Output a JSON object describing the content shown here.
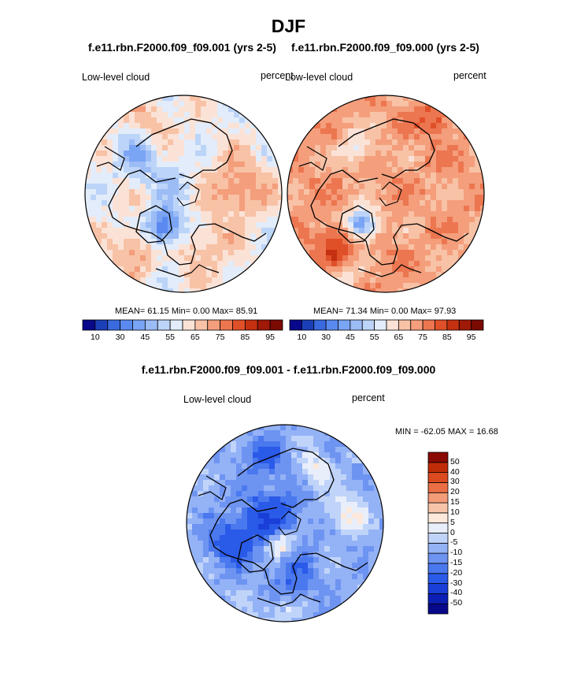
{
  "title": "DJF",
  "colors": {
    "continent_outline": "#000000",
    "frame": "#000000"
  },
  "chart_data": [
    {
      "type": "heatmap",
      "projection": "north polar stereographic",
      "title": "f.e11.rbn.F2000.f09_f09.001 (yrs 2-5)",
      "left_label": "Low-level cloud",
      "right_label": "percent",
      "stats": "MEAN=  61.15  Min=   0.00  Max=  85.91",
      "mean": 61.15,
      "min": 0.0,
      "max": 85.91,
      "colorbar": {
        "orientation": "horizontal",
        "levels": [
          10,
          20,
          30,
          40,
          45,
          50,
          55,
          60,
          65,
          70,
          75,
          80,
          85,
          90,
          95
        ],
        "tick_labels": [
          "10",
          "30",
          "45",
          "55",
          "65",
          "75",
          "85",
          "95"
        ],
        "colors": [
          "#08088a",
          "#1b3fb8",
          "#3a6ae0",
          "#5a8af0",
          "#7aa4f4",
          "#9cbcf6",
          "#bcd4f8",
          "#e2ecfa",
          "#fbe2d6",
          "#f8c2a6",
          "#f49e7c",
          "#ec7650",
          "#e05028",
          "#c43010",
          "#a01806",
          "#7a0a02"
        ]
      }
    },
    {
      "type": "heatmap",
      "projection": "north polar stereographic",
      "title": "f.e11.rbn.F2000.f09_f09.000 (yrs 2-5)",
      "left_label": "Low-level cloud",
      "right_label": "percent",
      "stats": "MEAN=  71.34  Min=   0.00  Max=  97.93",
      "mean": 71.34,
      "min": 0.0,
      "max": 97.93,
      "colorbar": {
        "orientation": "horizontal",
        "levels": [
          10,
          20,
          30,
          40,
          45,
          50,
          55,
          60,
          65,
          70,
          75,
          80,
          85,
          90,
          95
        ],
        "tick_labels": [
          "10",
          "30",
          "45",
          "55",
          "65",
          "75",
          "85",
          "95"
        ],
        "colors": [
          "#08088a",
          "#1b3fb8",
          "#3a6ae0",
          "#5a8af0",
          "#7aa4f4",
          "#9cbcf6",
          "#bcd4f8",
          "#e2ecfa",
          "#fbe2d6",
          "#f8c2a6",
          "#f49e7c",
          "#ec7650",
          "#e05028",
          "#c43010",
          "#a01806",
          "#7a0a02"
        ]
      }
    },
    {
      "type": "heatmap",
      "projection": "north polar stereographic",
      "title": "f.e11.rbn.F2000.f09_f09.001 - f.e11.rbn.F2000.f09_f09.000",
      "left_label": "Low-level cloud",
      "right_label": "percent",
      "stats": "MIN = -62.05 MAX =  16.68",
      "min": -62.05,
      "max": 16.68,
      "colorbar": {
        "orientation": "vertical",
        "levels": [
          -50,
          -40,
          -30,
          -20,
          -15,
          -10,
          -5,
          0,
          5,
          10,
          15,
          20,
          30,
          40,
          50
        ],
        "tick_labels": [
          "-50",
          "-40",
          "-30",
          "-20",
          "-15",
          "-10",
          "-5",
          "0",
          "5",
          "10",
          "15",
          "20",
          "30",
          "40",
          "50"
        ],
        "colors": [
          "#08088a",
          "#0c1fb4",
          "#1a3fd8",
          "#2a5ae8",
          "#4a78ee",
          "#6e94f2",
          "#94b2f6",
          "#c0d4fa",
          "#e8eefa",
          "#fde8dc",
          "#f8c4a8",
          "#f49c78",
          "#ec6e44",
          "#dc4a20",
          "#c02c08",
          "#8a0a02"
        ]
      }
    }
  ]
}
